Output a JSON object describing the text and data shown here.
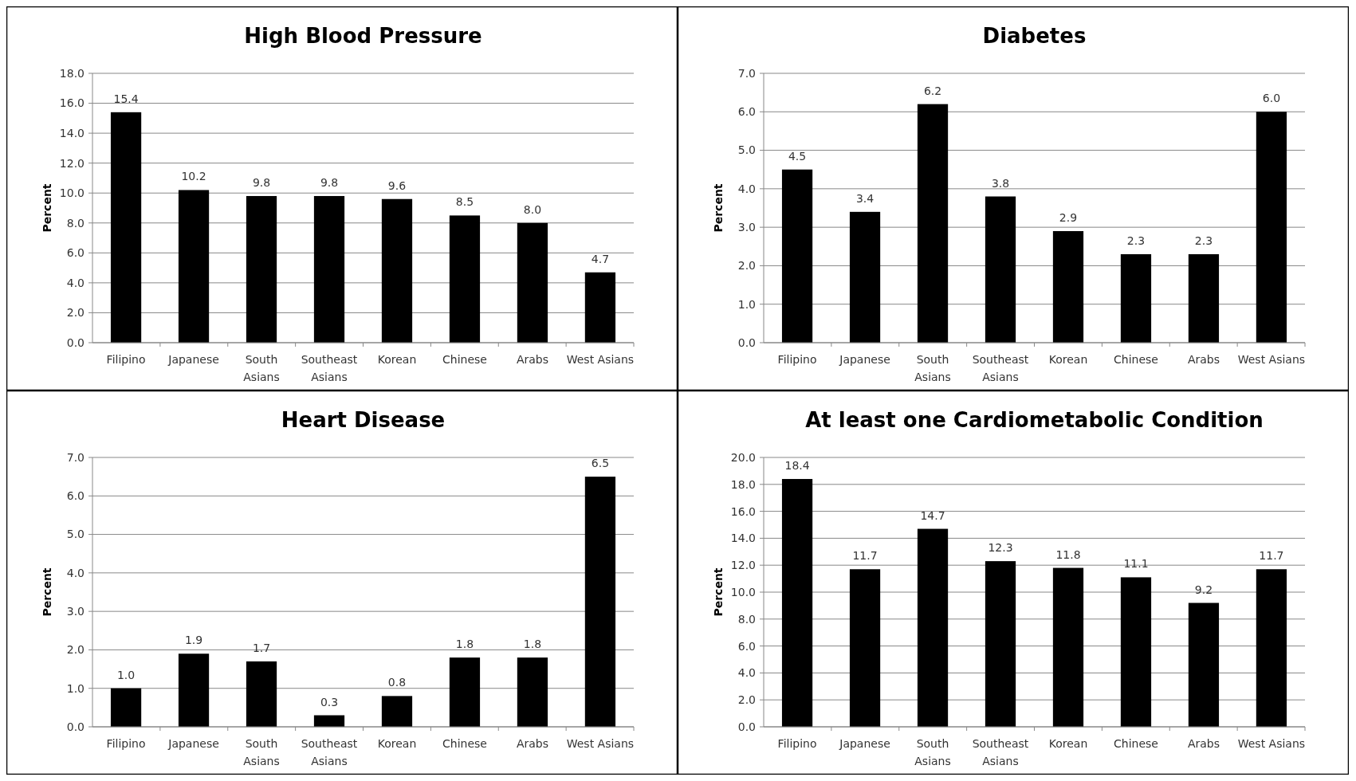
{
  "chart_data": [
    {
      "type": "bar",
      "title": "High Blood Pressure",
      "ylabel": "Percent",
      "categories": [
        "Filipino",
        "Japanese",
        "South Asians",
        "Southeast Asians",
        "Korean",
        "Chinese",
        "Arabs",
        "West Asians"
      ],
      "values": [
        15.4,
        10.2,
        9.8,
        9.8,
        9.6,
        8.5,
        8.0,
        4.7
      ],
      "value_labels": [
        "15.4",
        "10.2",
        "9.8",
        "9.8",
        "9.6",
        "8.5",
        "8.0",
        "4.7"
      ],
      "color": "#000000",
      "ylim": [
        0,
        18
      ],
      "yticks": [
        {
          "value": 0,
          "label": "0.0"
        },
        {
          "value": 2,
          "label": "2.0"
        },
        {
          "value": 4,
          "label": "4.0"
        },
        {
          "value": 6,
          "label": "6.0"
        },
        {
          "value": 8,
          "label": "8.0"
        },
        {
          "value": 10,
          "label": "10.0"
        },
        {
          "value": 12,
          "label": "12.0"
        },
        {
          "value": 14,
          "label": "14.0"
        },
        {
          "value": 16,
          "label": "16.0"
        },
        {
          "value": 18,
          "label": "18.0"
        }
      ],
      "grid": "y"
    },
    {
      "type": "bar",
      "title": "Diabetes",
      "ylabel": "Percent",
      "categories": [
        "Filipino",
        "Japanese",
        "South Asians",
        "Southeast Asians",
        "Korean",
        "Chinese",
        "Arabs",
        "West Asians"
      ],
      "values": [
        4.5,
        3.4,
        6.2,
        3.8,
        2.9,
        2.3,
        2.3,
        6.0
      ],
      "value_labels": [
        "4.5",
        "3.4",
        "6.2",
        "3.8",
        "2.9",
        "2.3",
        "2.3",
        "6.0"
      ],
      "color": "#000000",
      "ylim": [
        0,
        7
      ],
      "yticks": [
        {
          "value": 0,
          "label": "0.0"
        },
        {
          "value": 1,
          "label": "1.0"
        },
        {
          "value": 2,
          "label": "2.0"
        },
        {
          "value": 3,
          "label": "3.0"
        },
        {
          "value": 4,
          "label": "4.0"
        },
        {
          "value": 5,
          "label": "5.0"
        },
        {
          "value": 6,
          "label": "6.0"
        },
        {
          "value": 7,
          "label": "7.0"
        }
      ],
      "grid": "y"
    },
    {
      "type": "bar",
      "title": "Heart Disease",
      "ylabel": "Percent",
      "categories": [
        "Filipino",
        "Japanese",
        "South Asians",
        "Southeast Asians",
        "Korean",
        "Chinese",
        "Arabs",
        "West Asians"
      ],
      "values": [
        1.0,
        1.9,
        1.7,
        0.3,
        0.8,
        1.8,
        1.8,
        6.5
      ],
      "value_labels": [
        "1.0",
        "1.9",
        "1.7",
        "0.3",
        "0.8",
        "1.8",
        "1.8",
        "6.5"
      ],
      "color": "#000000",
      "ylim": [
        0,
        7
      ],
      "yticks": [
        {
          "value": 0,
          "label": "0.0"
        },
        {
          "value": 1,
          "label": "1.0"
        },
        {
          "value": 2,
          "label": "2.0"
        },
        {
          "value": 3,
          "label": "3.0"
        },
        {
          "value": 4,
          "label": "4.0"
        },
        {
          "value": 5,
          "label": "5.0"
        },
        {
          "value": 6,
          "label": "6.0"
        },
        {
          "value": 7,
          "label": "7.0"
        }
      ],
      "grid": "y"
    },
    {
      "type": "bar",
      "title": "At least one Cardiometabolic Condition",
      "ylabel": "Percent",
      "categories": [
        "Filipino",
        "Japanese",
        "South Asians",
        "Southeast Asians",
        "Korean",
        "Chinese",
        "Arabs",
        "West Asians"
      ],
      "values": [
        18.4,
        11.7,
        14.7,
        12.3,
        11.8,
        11.1,
        9.2,
        11.7
      ],
      "value_labels": [
        "18.4",
        "11.7",
        "14.7",
        "12.3",
        "11.8",
        "11.1",
        "9.2",
        "11.7"
      ],
      "color": "#000000",
      "ylim": [
        0,
        20
      ],
      "yticks": [
        {
          "value": 0,
          "label": "0.0"
        },
        {
          "value": 2,
          "label": "2.0"
        },
        {
          "value": 4,
          "label": "4.0"
        },
        {
          "value": 6,
          "label": "6.0"
        },
        {
          "value": 8,
          "label": "8.0"
        },
        {
          "value": 10,
          "label": "10.0"
        },
        {
          "value": 12,
          "label": "12.0"
        },
        {
          "value": 14,
          "label": "14.0"
        },
        {
          "value": 16,
          "label": "16.0"
        },
        {
          "value": 18,
          "label": "18.0"
        },
        {
          "value": 20,
          "label": "20.0"
        }
      ],
      "grid": "y"
    }
  ]
}
